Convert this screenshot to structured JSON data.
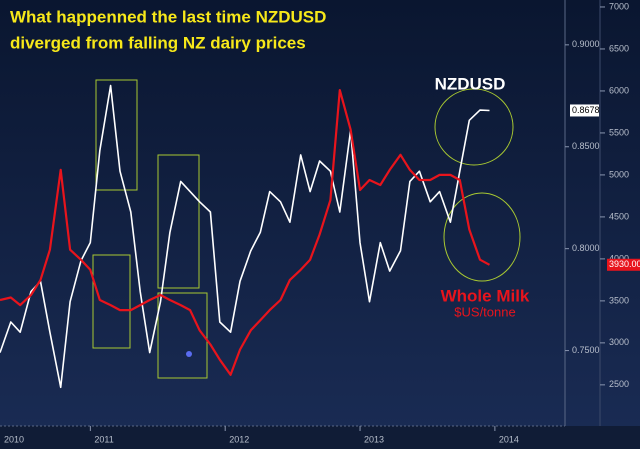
{
  "chart_data": {
    "type": "line",
    "title": [
      "What happenned the last time NZDUSD",
      "diverged from falling NZ dairy prices"
    ],
    "annotations": [
      "NZDUSD",
      "Whole Milk",
      "$US/tonne"
    ],
    "x": [
      2010.33,
      2010.41,
      2010.48,
      2010.56,
      2010.63,
      2010.7,
      2010.78,
      2010.85,
      2010.93,
      2011.0,
      2011.07,
      2011.15,
      2011.22,
      2011.3,
      2011.37,
      2011.44,
      2011.52,
      2011.59,
      2011.67,
      2011.74,
      2011.81,
      2011.89,
      2011.96,
      2012.04,
      2012.11,
      2012.19,
      2012.26,
      2012.33,
      2012.41,
      2012.48,
      2012.56,
      2012.63,
      2012.7,
      2012.78,
      2012.85,
      2012.93,
      2013.0,
      2013.07,
      2013.15,
      2013.22,
      2013.3,
      2013.37,
      2013.44,
      2013.52,
      2013.59,
      2013.67,
      2013.74,
      2013.81,
      2013.89,
      2013.96
    ],
    "series": [
      {
        "name": "NZDUSD",
        "color": "#ffffff",
        "axis": "y",
        "last_value_label": "0.8678",
        "values": [
          0.749,
          0.764,
          0.759,
          0.779,
          0.784,
          0.759,
          0.732,
          0.774,
          0.794,
          0.803,
          0.848,
          0.88,
          0.838,
          0.818,
          0.779,
          0.749,
          0.774,
          0.808,
          0.833,
          0.828,
          0.823,
          0.818,
          0.764,
          0.759,
          0.784,
          0.799,
          0.808,
          0.828,
          0.823,
          0.813,
          0.846,
          0.828,
          0.843,
          0.838,
          0.818,
          0.858,
          0.803,
          0.774,
          0.803,
          0.789,
          0.799,
          0.833,
          0.838,
          0.823,
          0.828,
          0.813,
          0.838,
          0.863,
          0.868,
          0.8678
        ]
      },
      {
        "name": "Whole Milk",
        "color": "#e8141c",
        "axis": "y2",
        "last_value_label": "3930.00",
        "values": [
          3510,
          3540,
          3450,
          3570,
          3750,
          4110,
          5060,
          4110,
          3990,
          3870,
          3510,
          3450,
          3390,
          3390,
          3450,
          3510,
          3570,
          3510,
          3450,
          3390,
          3150,
          2980,
          2800,
          2620,
          2920,
          3150,
          3270,
          3390,
          3510,
          3750,
          3870,
          3990,
          4290,
          4700,
          6010,
          5540,
          4820,
          4940,
          4880,
          5060,
          5240,
          5060,
          4940,
          4940,
          5000,
          5000,
          4940,
          4350,
          3990,
          3930
        ]
      }
    ],
    "xlim": [
      2010.33,
      2014.52
    ],
    "xticks": [
      2010,
      2011,
      2012,
      2013,
      2014
    ],
    "ylim": [
      0.713,
      0.922
    ],
    "yticks": [
      {
        "value": 0.9,
        "label": "0.9000"
      },
      {
        "value": 0.85,
        "label": "0.8500"
      },
      {
        "value": 0.8,
        "label": "0.8000"
      },
      {
        "value": 0.75,
        "label": "0.7500"
      }
    ],
    "y2lim": [
      2010,
      7083
    ],
    "y2ticks": [
      7000,
      6500,
      6000,
      5500,
      5000,
      4500,
      4000,
      3500,
      3000,
      2500
    ]
  }
}
